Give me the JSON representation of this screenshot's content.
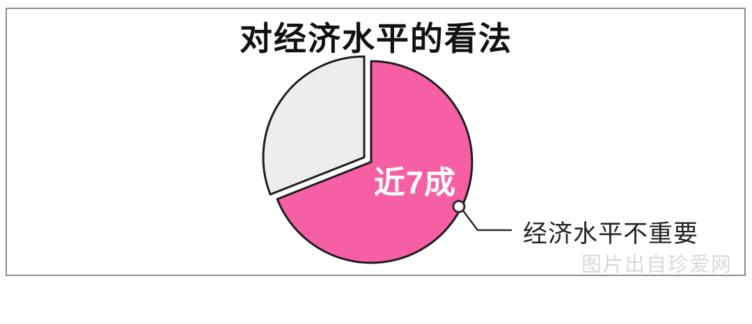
{
  "chart_data": {
    "type": "pie",
    "title": "对经济水平的看法",
    "start_angle_deg": 0,
    "direction": "clockwise",
    "legend": "none",
    "outline_color": "#1c1c1c",
    "slices": [
      {
        "name": "majority",
        "label": "近7成",
        "value_pct": 69,
        "color": "#f75fa5",
        "label_color": "#ffffff",
        "exploded": false
      },
      {
        "name": "minority",
        "label": "",
        "value_pct": 31,
        "color": "#ededed",
        "label_color": "",
        "exploded": true
      }
    ],
    "annotation": {
      "text": "经济水平不重要",
      "target_slice": "majority"
    }
  },
  "watermark": {
    "text": "图片出自珍爱网",
    "color": "#d8d8d8"
  }
}
